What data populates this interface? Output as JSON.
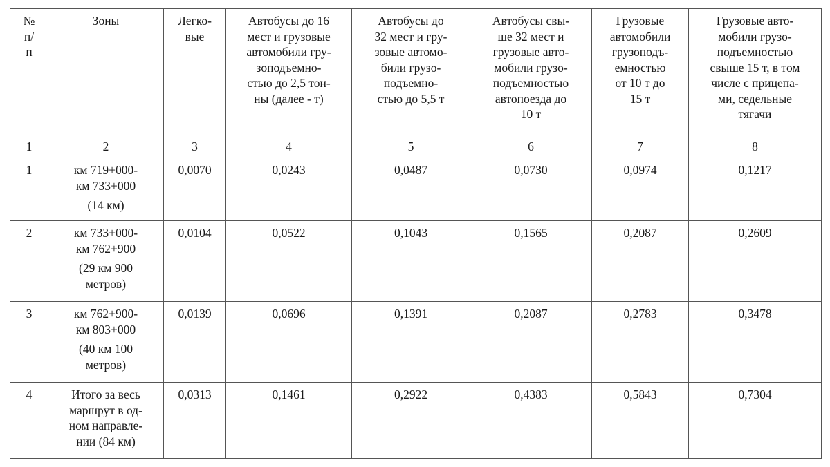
{
  "table": {
    "headers": [
      "№\nп/\nп",
      "Зоны",
      "Легко-\nвые",
      "Автобусы до 16\nмест и грузовые\nавтомобили гру-\nзоподъемно-\nстью до 2,5 тон-\nны (далее - т)",
      "Автобусы до\n32 мест и гру-\nзовые автомо-\nбили грузо-\nподъемно-\nстью до 5,5 т",
      "Автобусы свы-\nше 32 мест и\nгрузовые авто-\nмобили грузо-\nподъемностью\nавтопоезда до\n10 т",
      "Грузовые\nавтомобили\nгрузоподъ-\nемностью\nот 10 т до\n15 т",
      "Грузовые авто-\nмобили грузо-\nподъемностью\nсвыше 15 т, в том\nчисле с прицепа-\nми, седельные\nтягачи"
    ],
    "column_numbers": [
      "1",
      "2",
      "3",
      "4",
      "5",
      "6",
      "7",
      "8"
    ],
    "rows": [
      {
        "num": "1",
        "zone": "км 719+000-\nкм 733+000",
        "zone_sub": "(14 км)",
        "values": [
          "0,0070",
          "0,0243",
          "0,0487",
          "0,0730",
          "0,0974",
          "0,1217"
        ]
      },
      {
        "num": "2",
        "zone": "км 733+000-\nкм 762+900",
        "zone_sub": "(29 км 900\nметров)",
        "values": [
          "0,0104",
          "0,0522",
          "0,1043",
          "0,1565",
          "0,2087",
          "0,2609"
        ]
      },
      {
        "num": "3",
        "zone": "км 762+900-\nкм 803+000",
        "zone_sub": "(40 км 100\nметров)",
        "values": [
          "0,0139",
          "0,0696",
          "0,1391",
          "0,2087",
          "0,2783",
          "0,3478"
        ]
      },
      {
        "num": "4",
        "zone": "Итого за весь\nмаршрут в од-\nном направле-\nнии (84 км)",
        "zone_sub": "",
        "values": [
          "0,0313",
          "0,1461",
          "0,2922",
          "0,4383",
          "0,5843",
          "0,7304"
        ]
      }
    ]
  }
}
